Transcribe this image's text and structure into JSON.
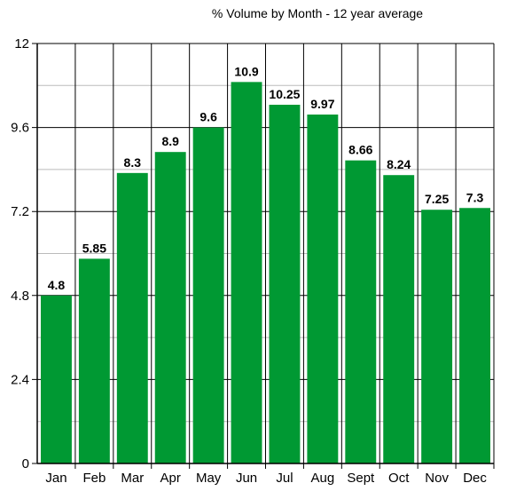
{
  "chart_data": {
    "type": "bar",
    "title": "% Volume by Month - 12 year average",
    "xlabel": "",
    "ylabel": "",
    "categories": [
      "Jan",
      "Feb",
      "Mar",
      "Apr",
      "May",
      "Jun",
      "Jul",
      "Aug",
      "Sept",
      "Oct",
      "Nov",
      "Dec"
    ],
    "values": [
      4.8,
      5.85,
      8.3,
      8.9,
      9.6,
      10.9,
      10.25,
      9.97,
      8.66,
      8.24,
      7.25,
      7.3
    ],
    "data_labels": [
      "4.8",
      "5.85",
      "8.3",
      "8.9",
      "9.6",
      "10.9",
      "10.25",
      "9.97",
      "8.66",
      "8.24",
      "7.25",
      "7.3"
    ],
    "y_ticks": [
      "0",
      "2.4",
      "4.8",
      "7.2",
      "9.6",
      "12"
    ],
    "ylim": [
      0,
      12
    ],
    "grid": true,
    "legend": "none",
    "bar_color": "#009933",
    "grid_color": "#000000"
  }
}
